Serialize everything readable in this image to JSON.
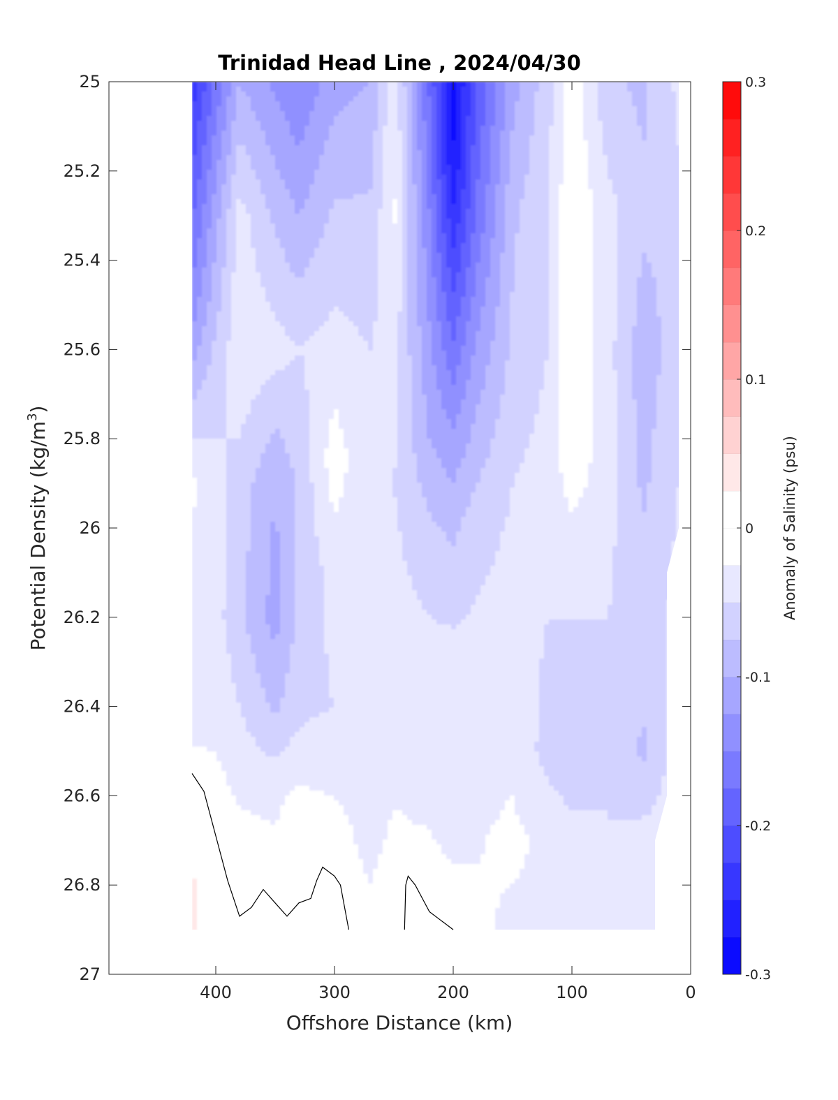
{
  "chart_data": {
    "type": "contour",
    "title": "Trinidad Head Line , 2024/04/30",
    "xlabel": "Offshore Distance (km)",
    "ylabel": "Potential Density (kg/m",
    "ylabel_superscript": "3",
    "ylabel_suffix": ")",
    "xlim": [
      490,
      0
    ],
    "ylim": [
      25,
      27
    ],
    "y_reversed": true,
    "xticks": [
      400,
      300,
      200,
      100,
      0
    ],
    "xtick_labels": [
      "400",
      "300",
      "200",
      "100",
      "0"
    ],
    "yticks": [
      25,
      25.2,
      25.4,
      25.6,
      25.8,
      26,
      26.2,
      26.4,
      26.6,
      26.8,
      27
    ],
    "ytick_labels": [
      "25",
      "25.2",
      "25.4",
      "25.6",
      "25.8",
      "26",
      "26.2",
      "26.4",
      "26.6",
      "26.8",
      "27"
    ],
    "grid": false,
    "colorbar": {
      "label": "Anomaly of Salinity (psu)",
      "range": [
        -0.3,
        0.3
      ],
      "ticks": [
        0.3,
        0.2,
        0.1,
        0,
        -0.1,
        -0.2,
        -0.3
      ],
      "tick_labels": [
        "0.3",
        "0.2",
        "0.1",
        "0",
        "-0.1",
        "-0.2",
        "-0.3"
      ],
      "n_levels": 24,
      "low_color": "#0000ff",
      "high_color": "#ff0000",
      "mid_color": "#ffffff"
    },
    "data_extent": {
      "x": [
        420,
        10
      ],
      "y": [
        25,
        26.9
      ]
    },
    "columns": [
      {
        "x": 420,
        "values": [
          [
            25.0,
            -0.24
          ],
          [
            25.25,
            -0.19
          ],
          [
            25.5,
            -0.14
          ],
          [
            25.7,
            -0.08
          ],
          [
            25.9,
            -0.02
          ],
          [
            26.05,
            -0.03
          ],
          [
            26.3,
            -0.04
          ],
          [
            26.55,
            -0.02
          ],
          [
            26.8,
            0.03
          ],
          [
            26.9,
            0.03
          ]
        ]
      },
      {
        "x": 400,
        "values": [
          [
            25.0,
            -0.17
          ],
          [
            25.3,
            -0.11
          ],
          [
            25.6,
            -0.07
          ],
          [
            25.9,
            -0.04
          ],
          [
            26.2,
            -0.04
          ],
          [
            26.45,
            -0.03
          ],
          [
            26.65,
            -0.01
          ],
          [
            26.9,
            0.01
          ]
        ]
      },
      {
        "x": 380,
        "values": [
          [
            25.0,
            -0.1
          ],
          [
            25.3,
            -0.04
          ],
          [
            25.6,
            -0.03
          ],
          [
            25.9,
            -0.06
          ],
          [
            26.2,
            -0.07
          ],
          [
            26.5,
            -0.04
          ],
          [
            26.75,
            -0.01
          ],
          [
            26.9,
            -0.01
          ]
        ]
      },
      {
        "x": 350,
        "values": [
          [
            25.0,
            -0.13
          ],
          [
            25.3,
            -0.08
          ],
          [
            25.6,
            -0.04
          ],
          [
            25.9,
            -0.1
          ],
          [
            26.2,
            -0.11
          ],
          [
            26.4,
            -0.08
          ],
          [
            26.6,
            -0.03
          ],
          [
            26.9,
            -0.01
          ]
        ]
      },
      {
        "x": 330,
        "values": [
          [
            25.0,
            -0.15
          ],
          [
            25.3,
            -0.1
          ],
          [
            25.6,
            -0.05
          ],
          [
            25.9,
            -0.07
          ],
          [
            26.2,
            -0.07
          ],
          [
            26.45,
            -0.05
          ],
          [
            26.65,
            -0.01
          ],
          [
            26.9,
            0.0
          ]
        ]
      },
      {
        "x": 300,
        "values": [
          [
            25.0,
            -0.11
          ],
          [
            25.3,
            -0.07
          ],
          [
            25.6,
            -0.04
          ],
          [
            25.85,
            -0.01
          ],
          [
            26.1,
            -0.04
          ],
          [
            26.4,
            -0.05
          ],
          [
            26.65,
            -0.02
          ],
          [
            26.9,
            -0.01
          ]
        ]
      },
      {
        "x": 270,
        "values": [
          [
            25.0,
            -0.1
          ],
          [
            25.3,
            -0.07
          ],
          [
            25.6,
            -0.05
          ],
          [
            25.9,
            -0.05
          ],
          [
            26.2,
            -0.05
          ],
          [
            26.5,
            -0.04
          ],
          [
            26.7,
            -0.03
          ],
          [
            26.9,
            -0.02
          ]
        ]
      },
      {
        "x": 250,
        "values": [
          [
            25.0,
            -0.03
          ],
          [
            25.3,
            -0.02
          ],
          [
            25.6,
            -0.04
          ],
          [
            25.9,
            -0.05
          ],
          [
            26.2,
            -0.04
          ],
          [
            26.5,
            -0.03
          ],
          [
            26.75,
            -0.02
          ],
          [
            26.9,
            -0.01
          ]
        ]
      },
      {
        "x": 220,
        "values": [
          [
            25.0,
            -0.18
          ],
          [
            25.3,
            -0.15
          ],
          [
            25.6,
            -0.12
          ],
          [
            25.8,
            -0.1
          ],
          [
            26.0,
            -0.07
          ],
          [
            26.3,
            -0.04
          ],
          [
            26.6,
            -0.03
          ],
          [
            26.9,
            -0.01
          ]
        ]
      },
      {
        "x": 200,
        "values": [
          [
            25.0,
            -0.29
          ],
          [
            25.2,
            -0.27
          ],
          [
            25.4,
            -0.22
          ],
          [
            25.6,
            -0.17
          ],
          [
            25.8,
            -0.12
          ],
          [
            26.0,
            -0.08
          ],
          [
            26.3,
            -0.04
          ],
          [
            26.6,
            -0.04
          ],
          [
            26.9,
            -0.01
          ]
        ]
      },
      {
        "x": 180,
        "values": [
          [
            25.0,
            -0.2
          ],
          [
            25.3,
            -0.17
          ],
          [
            25.6,
            -0.12
          ],
          [
            25.8,
            -0.09
          ],
          [
            26.0,
            -0.06
          ],
          [
            26.3,
            -0.04
          ],
          [
            26.6,
            -0.03
          ],
          [
            26.9,
            -0.02
          ]
        ]
      },
      {
        "x": 150,
        "values": [
          [
            25.0,
            -0.11
          ],
          [
            25.3,
            -0.08
          ],
          [
            25.6,
            -0.07
          ],
          [
            25.9,
            -0.05
          ],
          [
            26.2,
            -0.04
          ],
          [
            26.5,
            -0.03
          ],
          [
            26.7,
            -0.02
          ],
          [
            26.9,
            -0.03
          ]
        ]
      },
      {
        "x": 120,
        "values": [
          [
            25.0,
            -0.06
          ],
          [
            25.3,
            -0.05
          ],
          [
            25.6,
            -0.05
          ],
          [
            25.9,
            -0.04
          ],
          [
            26.2,
            -0.05
          ],
          [
            26.5,
            -0.06
          ],
          [
            26.7,
            -0.03
          ],
          [
            26.9,
            -0.03
          ]
        ]
      },
      {
        "x": 100,
        "values": [
          [
            25.0,
            -0.01
          ],
          [
            25.3,
            0.0
          ],
          [
            25.6,
            0.0
          ],
          [
            25.8,
            0.0
          ],
          [
            26.0,
            -0.03
          ],
          [
            26.3,
            -0.06
          ],
          [
            26.5,
            -0.07
          ],
          [
            26.7,
            -0.04
          ],
          [
            26.9,
            -0.03
          ]
        ]
      },
      {
        "x": 70,
        "values": [
          [
            25.0,
            -0.07
          ],
          [
            25.3,
            -0.04
          ],
          [
            25.6,
            -0.04
          ],
          [
            25.9,
            -0.04
          ],
          [
            26.2,
            -0.05
          ],
          [
            26.5,
            -0.05
          ],
          [
            26.7,
            -0.05
          ],
          [
            26.9,
            -0.04
          ]
        ]
      },
      {
        "x": 40,
        "values": [
          [
            25.0,
            -0.08
          ],
          [
            25.3,
            -0.07
          ],
          [
            25.6,
            -0.09
          ],
          [
            25.9,
            -0.08
          ],
          [
            26.2,
            -0.06
          ],
          [
            26.5,
            -0.08
          ],
          [
            26.7,
            -0.04
          ],
          [
            26.9,
            -0.04
          ]
        ]
      },
      {
        "x": 20,
        "values": [
          [
            25.0,
            -0.06
          ],
          [
            25.3,
            -0.07
          ],
          [
            25.6,
            -0.07
          ],
          [
            25.9,
            -0.06
          ],
          [
            26.2,
            -0.05
          ],
          [
            26.5,
            -0.05
          ],
          [
            26.7,
            -0.04
          ],
          [
            26.9,
            -0.04
          ]
        ]
      },
      {
        "x": 10,
        "values": [
          [
            25.0,
            -0.04
          ],
          [
            25.3,
            -0.06
          ],
          [
            25.6,
            -0.06
          ],
          [
            25.9,
            -0.05
          ],
          [
            26.2,
            -0.04
          ],
          [
            26.5,
            -0.04
          ],
          [
            26.7,
            -0.03
          ],
          [
            26.9,
            -0.03
          ]
        ]
      }
    ],
    "zero_contour_segments": [
      [
        [
          420,
          26.55
        ],
        [
          410,
          26.59
        ],
        [
          400,
          26.69
        ],
        [
          390,
          26.79
        ],
        [
          380,
          26.87
        ],
        [
          370,
          26.85
        ],
        [
          360,
          26.81
        ],
        [
          350,
          26.84
        ],
        [
          340,
          26.87
        ],
        [
          330,
          26.84
        ],
        [
          320,
          26.83
        ],
        [
          315,
          26.79
        ],
        [
          310,
          26.76
        ],
        [
          300,
          26.78
        ],
        [
          295,
          26.8
        ],
        [
          288,
          26.9
        ]
      ],
      [
        [
          241,
          26.9
        ],
        [
          240,
          26.8
        ],
        [
          238,
          26.78
        ],
        [
          232,
          26.8
        ],
        [
          220,
          26.86
        ],
        [
          210,
          26.88
        ],
        [
          200,
          26.9
        ]
      ]
    ]
  }
}
